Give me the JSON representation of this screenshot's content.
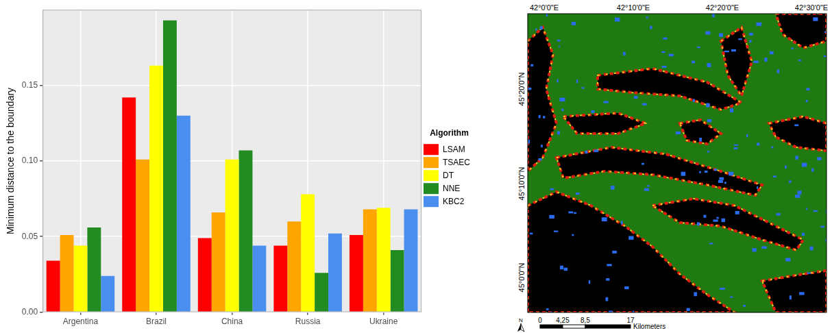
{
  "chart_data": {
    "type": "bar",
    "y_label": "Minimum distance to the boundary",
    "categories": [
      "Argentina",
      "Brazil",
      "China",
      "Russia",
      "Ukraine"
    ],
    "series": [
      {
        "name": "LSAM",
        "color": "#ff0000",
        "values": [
          0.034,
          0.142,
          0.049,
          0.044,
          0.051
        ]
      },
      {
        "name": "TSAEC",
        "color": "#ffa500",
        "values": [
          0.051,
          0.101,
          0.066,
          0.06,
          0.068
        ]
      },
      {
        "name": "DT",
        "color": "#ffff00",
        "values": [
          0.044,
          0.163,
          0.101,
          0.078,
          0.069
        ]
      },
      {
        "name": "NNE",
        "color": "#228b22",
        "values": [
          0.056,
          0.193,
          0.107,
          0.026,
          0.041
        ]
      },
      {
        "name": "KBC2",
        "color": "#4a8ff0",
        "values": [
          0.024,
          0.13,
          0.044,
          0.052,
          0.068
        ]
      }
    ],
    "ylim": [
      0,
      0.2
    ],
    "yticks": [
      {
        "value": 0,
        "label": "0.00"
      },
      0.05,
      {
        "value": 0.1,
        "label": "0.10"
      },
      0.15
    ],
    "grid": true,
    "legend": "right",
    "legend_title": "Algorithm"
  },
  "map": {
    "x_labels": [
      "42°0'0\"E",
      "42°10'0\"E",
      "42°20'0\"E",
      "42°30'0\"E"
    ],
    "y_labels": [
      "45°20'0\"N",
      "45°10'0\"N",
      "45°0'0\"N"
    ],
    "scale_bar": {
      "labels": [
        "0",
        "4,25",
        "8,5",
        "17"
      ],
      "unit": "Kilometers"
    },
    "north": "N"
  }
}
